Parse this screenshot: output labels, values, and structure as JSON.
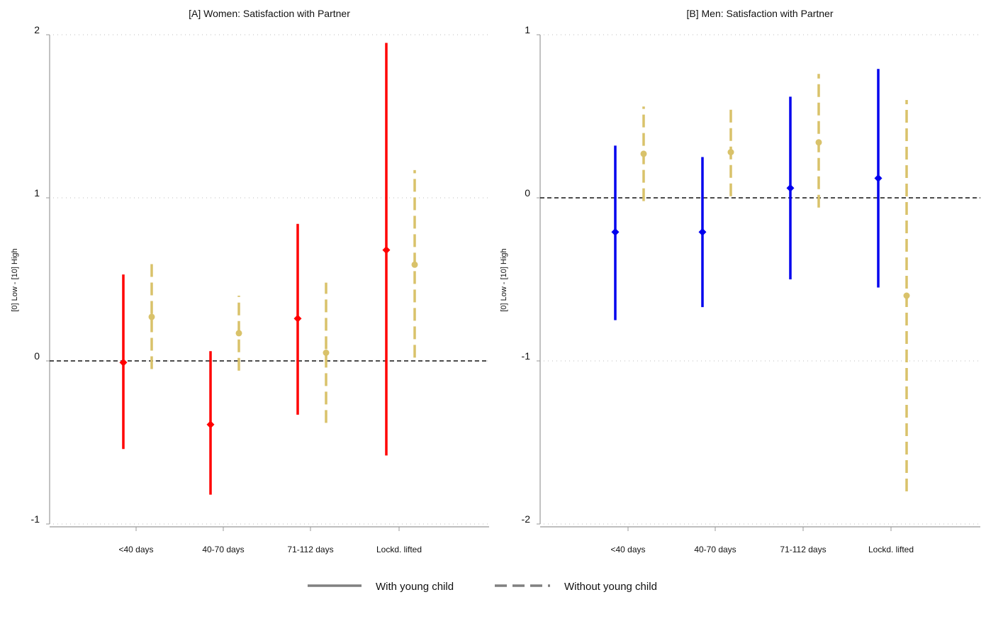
{
  "chart_data": [
    {
      "type": "scatter",
      "title": "[A] Women: Satisfaction with Partner",
      "ylabel": "[0] Low - [10] High",
      "xlabel": "",
      "ylim": [
        -1,
        2
      ],
      "yticks": [
        "-1",
        "0",
        "1",
        "2"
      ],
      "categories": [
        "<40 days",
        "40-70 days",
        "71-112 days",
        "Lockd. lifted"
      ],
      "grid": "horizontal dotted",
      "reference_line": 0,
      "series": [
        {
          "name": "With young child",
          "color": "#ff0000",
          "marker": "diamond",
          "line": "solid",
          "estimates": [
            -0.01,
            -0.39,
            0.26,
            0.68
          ],
          "ci_low": [
            -0.54,
            -0.82,
            -0.33,
            -0.58
          ],
          "ci_high": [
            0.53,
            0.06,
            0.84,
            1.95
          ]
        },
        {
          "name": "Without young child",
          "color": "#d9c26a",
          "marker": "circle",
          "line": "dashed",
          "estimates": [
            0.27,
            0.17,
            0.05,
            0.59
          ],
          "ci_low": [
            -0.05,
            -0.06,
            -0.38,
            0.02
          ],
          "ci_high": [
            0.6,
            0.4,
            0.48,
            1.17
          ]
        }
      ]
    },
    {
      "type": "scatter",
      "title": "[B] Men: Satisfaction with Partner",
      "ylabel": "[0] Low - [10] High",
      "xlabel": "",
      "ylim": [
        -2,
        1
      ],
      "yticks": [
        "-2",
        "-1",
        "0",
        "1"
      ],
      "categories": [
        "<40 days",
        "40-70 days",
        "71-112 days",
        "Lockd. lifted"
      ],
      "grid": "horizontal dotted",
      "reference_line": 0,
      "series": [
        {
          "name": "With young child",
          "color": "#0000ee",
          "marker": "diamond",
          "line": "solid",
          "estimates": [
            -0.21,
            -0.21,
            0.06,
            0.12
          ],
          "ci_low": [
            -0.75,
            -0.67,
            -0.5,
            -0.55
          ],
          "ci_high": [
            0.32,
            0.25,
            0.62,
            0.79
          ]
        },
        {
          "name": "Without young child",
          "color": "#d9c26a",
          "marker": "circle",
          "line": "dashed",
          "estimates": [
            0.27,
            0.28,
            0.34,
            -0.6
          ],
          "ci_low": [
            -0.02,
            0.01,
            -0.06,
            -1.8
          ],
          "ci_high": [
            0.56,
            0.55,
            0.76,
            0.6
          ]
        }
      ]
    }
  ],
  "legend": {
    "placement": "bottom-center",
    "items": [
      {
        "label": "With young child",
        "style": "solid",
        "color": "#808080"
      },
      {
        "label": "Without young child",
        "style": "dashed",
        "color": "#808080"
      }
    ]
  }
}
